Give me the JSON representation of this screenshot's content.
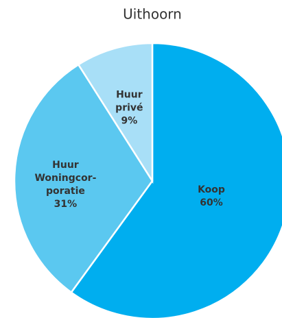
{
  "chart_data": {
    "type": "pie",
    "title": "Uithoorn",
    "categories": [
      "Koop",
      "Huur Woningcor-poratie",
      "Huur privé"
    ],
    "values": [
      60,
      31,
      9
    ],
    "value_labels": [
      "60%",
      "31%",
      "9%"
    ],
    "colors": [
      "#00aeef",
      "#5bc8f0",
      "#a8dff7"
    ]
  }
}
